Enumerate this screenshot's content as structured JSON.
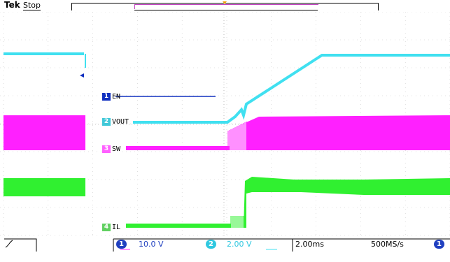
{
  "header": {
    "brand": "Tek",
    "acq_state": "Stop"
  },
  "colors": {
    "ch1": "#1030c0",
    "ch2": "#40e0f0",
    "ch3": "#ff20ff",
    "ch4": "#30f030"
  },
  "channels": [
    {
      "num": "1",
      "label": "EN"
    },
    {
      "num": "2",
      "label": "VOUT"
    },
    {
      "num": "3",
      "label": "SW"
    },
    {
      "num": "4",
      "label": "IL"
    }
  ],
  "footer": {
    "ch1_num": "1",
    "ch1_scale": "10.0 V",
    "ch2_num": "2",
    "ch2_scale": "2.00 V",
    "timebase": "2.00ms",
    "sample_rate": "500MS/s",
    "trigger_source": "1"
  }
}
